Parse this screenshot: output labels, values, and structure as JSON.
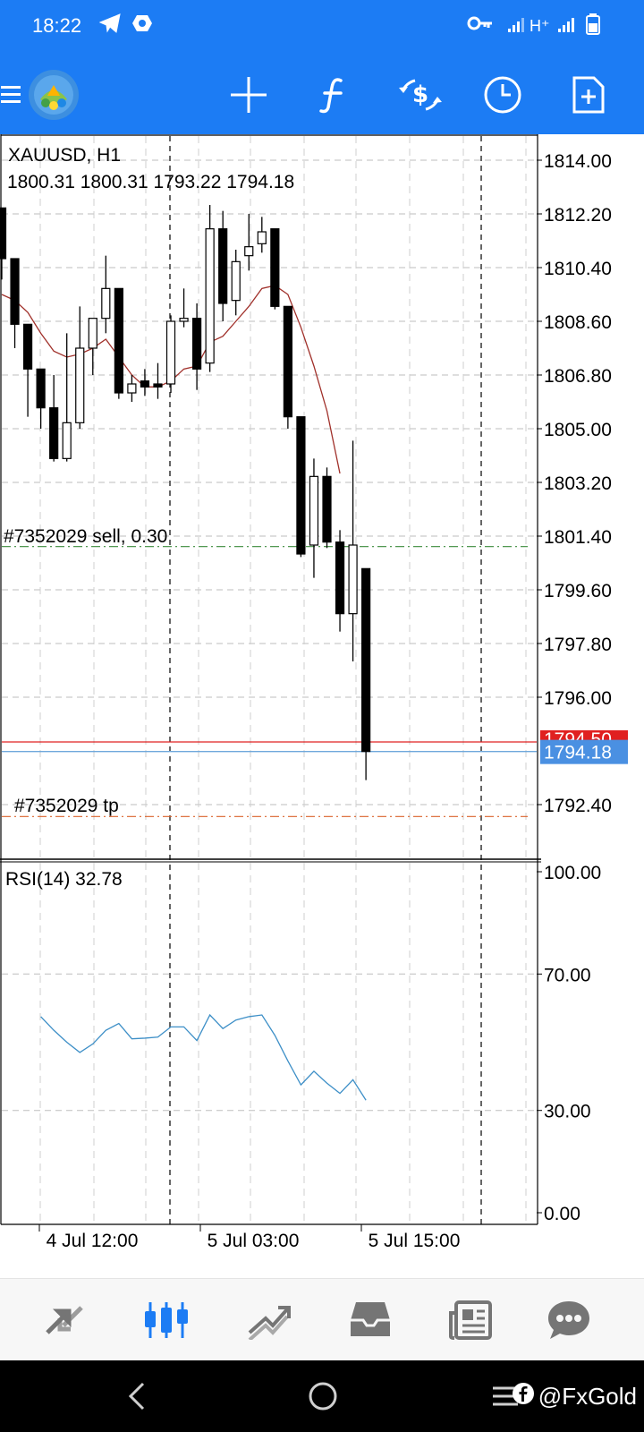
{
  "statusbar": {
    "time": "18:22",
    "signal_text": "H⁺",
    "icons": [
      "telegram-icon",
      "vpn-icon",
      "key-icon",
      "signal-icon",
      "signal-icon",
      "battery-icon"
    ]
  },
  "toolbar": {
    "buttons": [
      "menu-icon",
      "app-logo",
      "crosshair-icon",
      "indicators-icon",
      "trade-icon",
      "timeframe-icon",
      "new-order-icon"
    ]
  },
  "chart": {
    "symbol_label": "XAUUSD, H1",
    "ohlc_label": "1800.31 1800.31 1793.22 1794.18",
    "sell_label": "#7352029 sell, 0.30",
    "tp_label": "#7352029 tp",
    "ask_badge": "1794.50",
    "bid_badge": "1794.18",
    "rsi_label": "RSI(14) 32.78",
    "colors": {
      "ask_line": "#e02020",
      "bid_line": "#6fa8dc",
      "bid_badge_bg": "#4a90e2",
      "ask_badge_bg": "#e02020",
      "sell_line": "#3a8a3a",
      "tp_line": "#d9622b",
      "ma_line": "#a0302a",
      "rsi_line": "#3d8fc7"
    }
  },
  "chart_data": {
    "type": "candlestick",
    "symbol": "XAUUSD",
    "timeframe": "H1",
    "price_axis": {
      "ticks": [
        "1814.00",
        "1812.20",
        "1810.40",
        "1808.60",
        "1806.80",
        "1805.00",
        "1803.20",
        "1801.40",
        "1799.60",
        "1797.80",
        "1796.00",
        "1792.40"
      ],
      "ylim": [
        1791.5,
        1814.9
      ]
    },
    "time_axis": {
      "labels": [
        "4 Jul 12:00",
        "5 Jul 03:00",
        "5 Jul 15:00"
      ]
    },
    "candles": [
      [
        1812.4,
        1812.4,
        1810.0,
        1810.7
      ],
      [
        1810.7,
        1810.7,
        1807.7,
        1808.5
      ],
      [
        1808.5,
        1808.5,
        1805.4,
        1807.0
      ],
      [
        1807.0,
        1807.0,
        1805.0,
        1805.7
      ],
      [
        1805.7,
        1806.8,
        1803.9,
        1804.0
      ],
      [
        1804.0,
        1808.2,
        1803.9,
        1805.2
      ],
      [
        1805.2,
        1809.1,
        1805.0,
        1807.7
      ],
      [
        1807.7,
        1808.6,
        1806.8,
        1808.7
      ],
      [
        1808.7,
        1810.8,
        1808.2,
        1809.7
      ],
      [
        1809.7,
        1809.7,
        1806.0,
        1806.2
      ],
      [
        1806.2,
        1806.8,
        1805.9,
        1806.5
      ],
      [
        1806.6,
        1807.0,
        1806.1,
        1806.4
      ],
      [
        1806.5,
        1807.2,
        1806.0,
        1806.4
      ],
      [
        1806.5,
        1808.8,
        1806.2,
        1808.6
      ],
      [
        1808.6,
        1809.7,
        1808.4,
        1808.7
      ],
      [
        1808.7,
        1809.2,
        1806.3,
        1807.0
      ],
      [
        1807.2,
        1812.5,
        1806.9,
        1811.7
      ],
      [
        1811.7,
        1812.3,
        1808.6,
        1809.2
      ],
      [
        1809.3,
        1811.0,
        1808.8,
        1810.6
      ],
      [
        1810.8,
        1812.2,
        1810.3,
        1811.1
      ],
      [
        1811.2,
        1812.1,
        1810.9,
        1811.6
      ],
      [
        1811.7,
        1811.7,
        1809.0,
        1809.1
      ],
      [
        1809.1,
        1809.1,
        1805.0,
        1805.4
      ],
      [
        1805.4,
        1805.4,
        1800.7,
        1800.8
      ],
      [
        1801.1,
        1804.0,
        1800.0,
        1803.4
      ],
      [
        1803.4,
        1803.7,
        1801.0,
        1801.2
      ],
      [
        1801.2,
        1801.6,
        1798.2,
        1798.8
      ],
      [
        1798.8,
        1804.6,
        1797.2,
        1801.1
      ],
      [
        1800.31,
        1800.31,
        1793.22,
        1794.18
      ]
    ],
    "moving_average": [
      1809.5,
      1809.3,
      1808.9,
      1808.2,
      1807.6,
      1807.4,
      1807.5,
      1807.7,
      1808.0,
      1807.4,
      1806.8,
      1806.4,
      1806.4,
      1806.6,
      1807.0,
      1807.1,
      1807.9,
      1808.1,
      1808.6,
      1809.1,
      1809.7,
      1809.8,
      1809.5,
      1808.4,
      1807.1,
      1805.6,
      1803.5
    ],
    "sell_level": 1801.05,
    "tp_level": 1792.0,
    "ask": 1794.5,
    "bid": 1794.18,
    "rsi": {
      "period": 14,
      "value": 32.78,
      "levels": [
        100,
        70,
        30,
        0
      ],
      "level_labels": [
        "100.00",
        "70.00",
        "30.00",
        "0.00"
      ],
      "values": [
        57.5,
        53.5,
        50.0,
        47.0,
        49.5,
        53.5,
        55.5,
        51.0,
        51.2,
        51.5,
        54.5,
        54.5,
        50.5,
        58.0,
        54.0,
        56.5,
        57.5,
        58.0,
        52.0,
        44.5,
        37.5,
        41.5,
        38.0,
        35.0,
        39.0,
        33.0
      ]
    }
  },
  "bottomnav": {
    "items": [
      "quotes-icon",
      "chart-icon",
      "trade-icon",
      "history-icon",
      "news-icon",
      "messages-icon"
    ],
    "active_index": 1,
    "active_color": "#1c7cf4",
    "inactive_color": "#757575"
  },
  "sysnav": {
    "watermark": "@FxGold"
  }
}
